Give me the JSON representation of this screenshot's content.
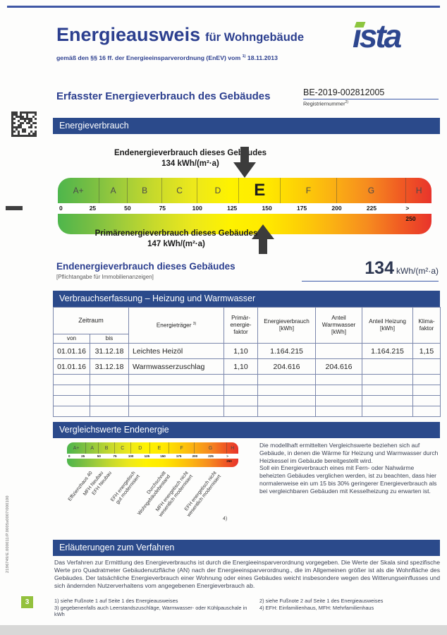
{
  "page": {
    "number": "3",
    "serial": "2196749/E.000011/P.0005s0007/000100"
  },
  "header": {
    "title": "Energieausweis",
    "title_suffix": "für Wohngebäude",
    "subtitle_prefix": "gemäß den §§ 16 ff. der Energieeinsparverordnung (EnEV) vom",
    "subtitle_sup": "1)",
    "subtitle_date": "18.11.2013",
    "logo_text": "ista"
  },
  "recorded": {
    "title": "Erfasster Energieverbrauch des Gebäudes",
    "registration_number": "BE-2019-002812005",
    "registration_label": "Registriernummer",
    "registration_sup": "2)"
  },
  "sections": {
    "energieverbrauch": "Energieverbrauch",
    "verbrauchserfassung": "Verbrauchserfassung – Heizung und Warmwasser",
    "vergleichswerte": "Vergleichswerte Endenergie",
    "erlaeuterungen": "Erläuterungen zum Verfahren"
  },
  "scale": {
    "classes": [
      "A+",
      "A",
      "B",
      "C",
      "D",
      "E",
      "F",
      "G",
      "H"
    ],
    "boundaries": [
      0,
      30,
      50,
      75,
      100,
      130,
      160,
      200,
      250,
      268
    ],
    "max": 268,
    "ticks": [
      {
        "label": "0",
        "v": 0
      },
      {
        "label": "25",
        "v": 25
      },
      {
        "label": "50",
        "v": 50
      },
      {
        "label": "75",
        "v": 75
      },
      {
        "label": "100",
        "v": 100
      },
      {
        "label": "125",
        "v": 125
      },
      {
        "label": "150",
        "v": 150
      },
      {
        "label": "175",
        "v": 175
      },
      {
        "label": "200",
        "v": 200
      },
      {
        "label": "225",
        "v": 225
      },
      {
        "label": "> 250",
        "v": 258
      }
    ],
    "current_class": "E",
    "end_energy_label": "Endenergieverbrauch dieses Gebäudes",
    "end_energy_value": 134,
    "end_energy_value_text": "134 kWh/(m²·a)",
    "primary_energy_label": "Primärenergieverbrauch dieses Gebäudes",
    "primary_energy_value": 147,
    "primary_energy_value_text": "147 kWh/(m²·a)"
  },
  "end_energy_block": {
    "label": "Endenergieverbrauch dieses Gebäudes",
    "sublabel": "[Pflichtangabe für Immobilienanzeigen]",
    "value": "134",
    "unit": "kWh/(m²·a)"
  },
  "table": {
    "headers": {
      "zeitraum": "Zeitraum",
      "von": "von",
      "bis": "bis",
      "energietraeger": "Energieträger",
      "energietraeger_sup": "3)",
      "primaerfaktor": "Primär-\nenergie-\nfaktor",
      "energieverbrauch": "Energieverbrauch\n[kWh]",
      "anteil_warmwasser": "Anteil\nWarmwasser\n[kWh]",
      "anteil_heizung": "Anteil Heizung\n[kWh]",
      "klimafaktor": "Klima-\nfaktor"
    },
    "rows": [
      [
        "01.01.16",
        "31.12.18",
        "Leichtes Heizöl",
        "1,10",
        "1.164.215",
        "",
        "1.164.215",
        "1,15"
      ],
      [
        "01.01.16",
        "31.12.18",
        "Warmwasserzuschlag",
        "1,10",
        "204.616",
        "204.616",
        "",
        ""
      ]
    ],
    "empty_row_count": 4
  },
  "comparison": {
    "labels": [
      {
        "text": "Effizienzhaus 40",
        "v": 36
      },
      {
        "text": "MFH Neubau",
        "v": 52
      },
      {
        "text": "EFH Neubau",
        "v": 66
      },
      {
        "text": "EFH energetisch\ngut modernisiert",
        "v": 103
      },
      {
        "text": "Durchschnitt\nWohngebäudebestand",
        "v": 150
      },
      {
        "text": "MFH energetisch nicht\nwesentlich modernisiert",
        "v": 185
      },
      {
        "text": "EFH energetisch nicht\nwesentlich modernisiert",
        "v": 230
      }
    ],
    "footnote_marker": "4)",
    "paragraph1": "Die modellhaft ermittelten Vergleichswerte beziehen sich auf Gebäude, in denen die Wärme für Heizung und Warmwasser durch Heizkessel im Gebäude bereitgestellt wird.",
    "paragraph2": "Soll ein Energieverbrauch eines mit Fern- oder Nahwärme beheizten Gebäudes verglichen werden, ist zu beachten, dass hier normalerweise ein um 15 bis 30% geringerer Energieverbrauch als bei vergleichbaren Gebäuden mit Kesselheizung zu erwarten ist."
  },
  "explanation": {
    "text": "Das Verfahren zur Ermittlung des Energieverbrauchs ist durch die Energieeinsparverordnung vorgegeben. Die Werte der Skala sind spezifische Werte pro Quadratmeter Gebäudenutzfläche (AN) nach der Energieeinsparverordnung., die im Allgemeinen größer ist als die Wohnfläche des Gebäudes. Der tatsächliche Energieverbrauch einer Wohnung oder eines Gebäudes weicht insbesondere wegen des Witterungseinflusses und sich ändernden Nutzerverhaltens vom angegebenen Energieverbrauch ab."
  },
  "footnotes": {
    "left": [
      "1) siehe Fußnote 1 auf Seite 1 des Energieausweises",
      "3) gegebenenfalls auch Leerstandszuschläge, Warmwasser- oder Kühlpauschale in kWh"
    ],
    "right": [
      "2) siehe Fußnote 2 auf Seite 1 des Energieausweises",
      "4) EFH: Einfamilienhaus, MFH: Mehrfamilienhaus"
    ]
  },
  "colors": {
    "navy_bar": "#2b4a8b",
    "heading_blue": "#2c3f8f",
    "accent_green": "#8dc63f",
    "scale_green": "#4eb64c",
    "scale_yellow": "#fff200",
    "scale_red": "#e8342c"
  }
}
